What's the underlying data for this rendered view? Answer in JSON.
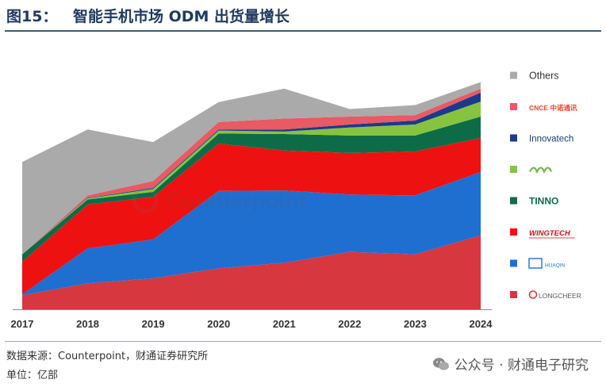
{
  "header": {
    "figure_no": "图15：",
    "title": "智能手机市场 ODM 出货量增长"
  },
  "footer": {
    "source": "数据来源：Counterpoint，财通证券研究所",
    "unit": "单位：亿部",
    "wechat": "公众号 · 财通电子研究"
  },
  "watermark": "Counterpoint",
  "chart_data": {
    "type": "area",
    "stacked": true,
    "title": "智能手机市场 ODM 出货量增长",
    "unit": "亿部",
    "x": [
      "2017",
      "2018",
      "2019",
      "2020",
      "2021",
      "2022",
      "2023",
      "2024"
    ],
    "series": [
      {
        "name": "LONGCHEER",
        "color": "#d7373f",
        "values": [
          0.28,
          0.52,
          0.62,
          0.82,
          0.93,
          1.15,
          1.1,
          1.48
        ]
      },
      {
        "name": "HUAQIN",
        "color": "#1f6fd0",
        "values": [
          0.02,
          0.7,
          0.78,
          1.55,
          1.45,
          1.15,
          1.18,
          1.27
        ]
      },
      {
        "name": "WINGTECH",
        "color": "#ee1111",
        "values": [
          0.65,
          0.88,
          0.85,
          0.95,
          0.8,
          0.83,
          0.88,
          0.68
        ]
      },
      {
        "name": "TINNO",
        "color": "#0e6b47",
        "values": [
          0.15,
          0.1,
          0.1,
          0.2,
          0.33,
          0.35,
          0.32,
          0.43
        ]
      },
      {
        "name": "Longcheer-sub",
        "color": "#86c43f",
        "values": [
          0.0,
          0.02,
          0.06,
          0.06,
          0.05,
          0.16,
          0.22,
          0.3
        ]
      },
      {
        "name": "Innovatech",
        "color": "#1b3a8c",
        "values": [
          0.0,
          0.01,
          0.02,
          0.02,
          0.04,
          0.06,
          0.08,
          0.18
        ]
      },
      {
        "name": "CNCE",
        "color": "#e85a64",
        "values": [
          0.0,
          0.05,
          0.14,
          0.15,
          0.22,
          0.16,
          0.11,
          0.08
        ]
      },
      {
        "name": "Others",
        "color": "#aaaaaa",
        "values": [
          1.85,
          1.32,
          0.78,
          0.4,
          0.6,
          0.15,
          0.2,
          0.13
        ]
      }
    ],
    "legend": {
      "position": "right",
      "entries": [
        {
          "key": "Others",
          "label": "Others",
          "color": "#aaaaaa",
          "style": "text"
        },
        {
          "key": "CNCE",
          "label": "CNCE 中诺通讯",
          "color": "#e85a64",
          "style": "cnce"
        },
        {
          "key": "Innovatech",
          "label": "Innovatech",
          "color": "#1b3a8c",
          "style": "innova"
        },
        {
          "key": "Longcheer-sub",
          "label": "",
          "color": "#86c43f",
          "style": "wave"
        },
        {
          "key": "TINNO",
          "label": "TINNO",
          "color": "#0e6b47",
          "style": "tinno"
        },
        {
          "key": "WINGTECH",
          "label": "WINGTECH",
          "color": "#ee1111",
          "style": "wingtech"
        },
        {
          "key": "HUAQIN",
          "label": "HUAQIN",
          "color": "#1f6fd0",
          "style": "hq"
        },
        {
          "key": "LONGCHEER",
          "label": "LONGCHEER",
          "color": "#d7373f",
          "style": "longcheer"
        }
      ]
    },
    "ylim": [
      0,
      5.4
    ],
    "grid": false
  }
}
